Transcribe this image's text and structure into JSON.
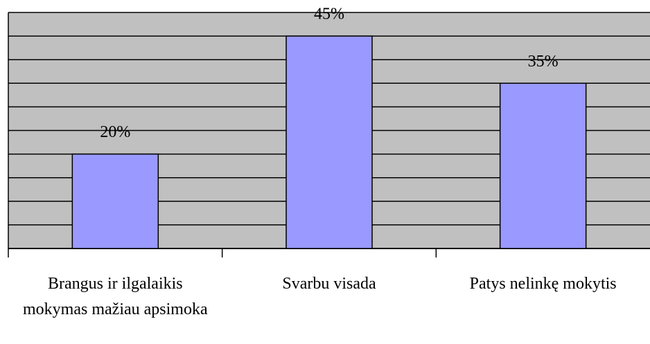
{
  "chart_data": {
    "type": "bar",
    "categories": [
      "Brangus ir ilgalaikis mokymas mažiau apsimoka",
      "Svarbu visada",
      "Patys nelinkę mokytis"
    ],
    "values": [
      20,
      45,
      35
    ],
    "value_labels": [
      "20%",
      "45%",
      "35%"
    ],
    "color": "#9999ff",
    "ylim": [
      0,
      50
    ],
    "yticks": [
      0,
      5,
      10,
      15,
      20,
      25,
      30,
      35,
      40,
      45,
      50
    ],
    "grid": true
  }
}
